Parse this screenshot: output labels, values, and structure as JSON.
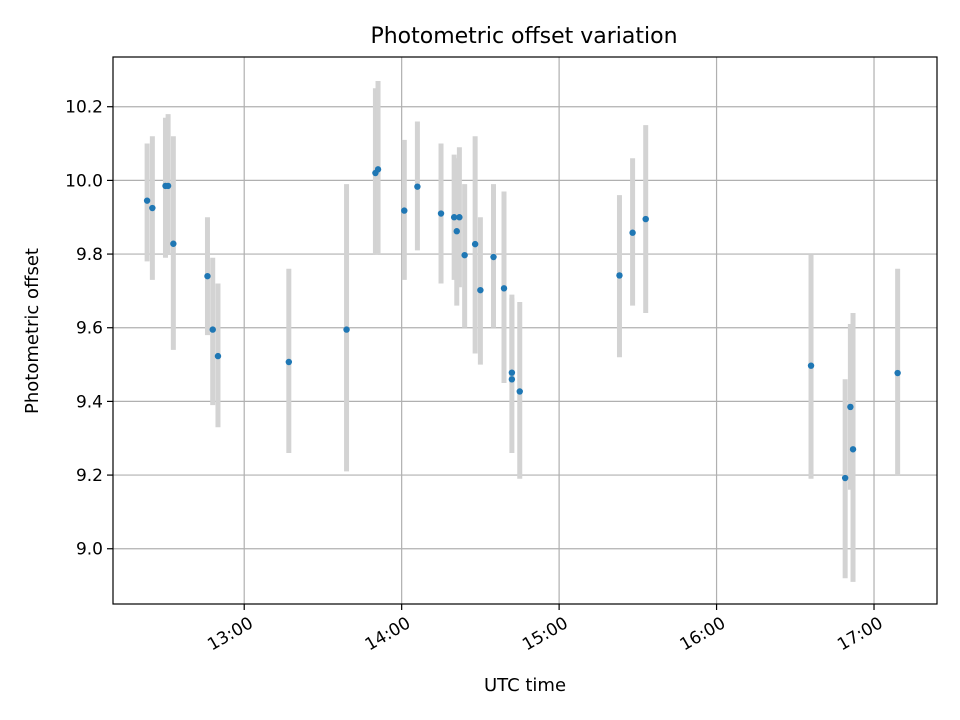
{
  "chart_data": {
    "type": "scatter",
    "title": "Photometric offset variation",
    "xlabel": "UTC time",
    "ylabel": "Photometric offset",
    "x_axis": {
      "kind": "time",
      "range": [
        "12:10",
        "17:24"
      ],
      "ticks": [
        {
          "value": "13:00",
          "label": "13:00"
        },
        {
          "value": "14:00",
          "label": "14:00"
        },
        {
          "value": "15:00",
          "label": "15:00"
        },
        {
          "value": "16:00",
          "label": "16:00"
        },
        {
          "value": "17:00",
          "label": "17:00"
        }
      ]
    },
    "y_axis": {
      "range": [
        8.85,
        10.335
      ],
      "ticks": [
        {
          "value": 9.0,
          "label": "9.0"
        },
        {
          "value": 9.2,
          "label": "9.2"
        },
        {
          "value": 9.4,
          "label": "9.4"
        },
        {
          "value": 9.6,
          "label": "9.6"
        },
        {
          "value": 9.8,
          "label": "9.8"
        },
        {
          "value": 10.0,
          "label": "10.0"
        },
        {
          "value": 10.2,
          "label": "10.2"
        }
      ]
    },
    "grid": true,
    "colors": {
      "points": "#1f77b4",
      "error_bars": "#d3d3d3",
      "grid": "#b0b0b0"
    },
    "points": [
      {
        "time": "12:23",
        "y": 9.945,
        "low": 9.78,
        "high": 10.1
      },
      {
        "time": "12:25",
        "y": 9.925,
        "low": 9.73,
        "high": 10.12
      },
      {
        "time": "12:30",
        "y": 9.985,
        "low": 9.79,
        "high": 10.17
      },
      {
        "time": "12:31",
        "y": 9.985,
        "low": 9.8,
        "high": 10.18
      },
      {
        "time": "12:33",
        "y": 9.828,
        "low": 9.54,
        "high": 10.12
      },
      {
        "time": "12:46",
        "y": 9.74,
        "low": 9.58,
        "high": 9.9
      },
      {
        "time": "12:48",
        "y": 9.595,
        "low": 9.39,
        "high": 9.79
      },
      {
        "time": "12:50",
        "y": 9.523,
        "low": 9.33,
        "high": 9.72
      },
      {
        "time": "13:17",
        "y": 9.507,
        "low": 9.26,
        "high": 9.76
      },
      {
        "time": "13:39",
        "y": 9.595,
        "low": 9.21,
        "high": 9.99
      },
      {
        "time": "13:50",
        "y": 10.02,
        "low": 9.8,
        "high": 10.25
      },
      {
        "time": "13:51",
        "y": 10.03,
        "low": 9.8,
        "high": 10.27
      },
      {
        "time": "14:01",
        "y": 9.918,
        "low": 9.73,
        "high": 10.11
      },
      {
        "time": "14:06",
        "y": 9.983,
        "low": 9.81,
        "high": 10.16
      },
      {
        "time": "14:15",
        "y": 9.91,
        "low": 9.72,
        "high": 10.1
      },
      {
        "time": "14:20",
        "y": 9.9,
        "low": 9.73,
        "high": 10.07
      },
      {
        "time": "14:21",
        "y": 9.862,
        "low": 9.66,
        "high": 10.06
      },
      {
        "time": "14:22",
        "y": 9.9,
        "low": 9.71,
        "high": 10.09
      },
      {
        "time": "14:24",
        "y": 9.797,
        "low": 9.6,
        "high": 9.99
      },
      {
        "time": "14:28",
        "y": 9.827,
        "low": 9.53,
        "high": 10.12
      },
      {
        "time": "14:30",
        "y": 9.702,
        "low": 9.5,
        "high": 9.9
      },
      {
        "time": "14:35",
        "y": 9.792,
        "low": 9.6,
        "high": 9.99
      },
      {
        "time": "14:39",
        "y": 9.707,
        "low": 9.45,
        "high": 9.97
      },
      {
        "time": "14:42",
        "y": 9.478,
        "low": 9.45,
        "high": 9.69
      },
      {
        "time": "14:42",
        "y": 9.46,
        "low": 9.26,
        "high": 9.68
      },
      {
        "time": "14:45",
        "y": 9.427,
        "low": 9.19,
        "high": 9.67
      },
      {
        "time": "15:23",
        "y": 9.742,
        "low": 9.52,
        "high": 9.96
      },
      {
        "time": "15:28",
        "y": 9.858,
        "low": 9.66,
        "high": 10.06
      },
      {
        "time": "15:33",
        "y": 9.895,
        "low": 9.64,
        "high": 10.15
      },
      {
        "time": "16:36",
        "y": 9.497,
        "low": 9.19,
        "high": 9.8
      },
      {
        "time": "16:49",
        "y": 9.192,
        "low": 8.92,
        "high": 9.46
      },
      {
        "time": "16:51",
        "y": 9.385,
        "low": 9.16,
        "high": 9.61
      },
      {
        "time": "16:52",
        "y": 9.27,
        "low": 8.91,
        "high": 9.64
      },
      {
        "time": "17:09",
        "y": 9.477,
        "low": 9.2,
        "high": 9.76
      }
    ]
  }
}
